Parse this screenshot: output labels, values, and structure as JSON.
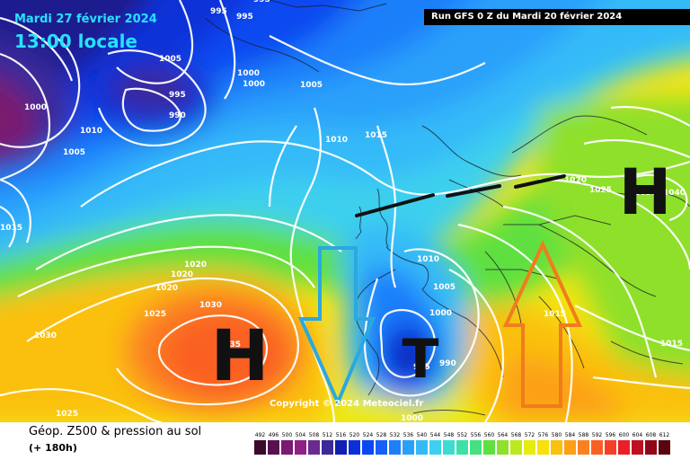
{
  "header": {
    "date": "Mardi 27 février 2024",
    "time": "13:00 locale",
    "run": "Run GFS 0 Z du Mardi 20 février 2024"
  },
  "map": {
    "pressure_labels": [
      "995",
      "995",
      "995",
      "1000",
      "1000",
      "1005",
      "995",
      "990",
      "1010",
      "1005",
      "1000",
      "1005",
      "1010",
      "1015",
      "1015",
      "1020",
      "1020",
      "1020",
      "1025",
      "1030",
      "1030",
      "1035",
      "1025",
      "1010",
      "1005",
      "1000",
      "995",
      "990",
      "1000",
      "1020",
      "1025",
      "1030",
      "1040",
      "1015",
      "1015"
    ],
    "pressure_systems": [
      {
        "label": "H",
        "color": "#111111"
      },
      {
        "label": "T",
        "color": "#111111"
      },
      {
        "label": "H",
        "color": "#111111"
      }
    ],
    "arrows": [
      {
        "direction": "down",
        "color": "#2aa8e0"
      },
      {
        "direction": "up",
        "color": "#f07c1c"
      }
    ],
    "copyright": "Copyright © 2024 Meteociel.fr"
  },
  "legend": {
    "title": "Géop. Z500 & pression au sol",
    "subtitle": "(+ 180h)",
    "scale": [
      {
        "value": "492",
        "color": "#3a0a2e"
      },
      {
        "value": "496",
        "color": "#5a1050"
      },
      {
        "value": "500",
        "color": "#7a1a70"
      },
      {
        "value": "504",
        "color": "#901f88"
      },
      {
        "value": "508",
        "color": "#6b2a90"
      },
      {
        "value": "512",
        "color": "#3a2a9a"
      },
      {
        "value": "516",
        "color": "#1020b0"
      },
      {
        "value": "520",
        "color": "#0a30d8"
      },
      {
        "value": "524",
        "color": "#0a48f0"
      },
      {
        "value": "528",
        "color": "#1660fa"
      },
      {
        "value": "532",
        "color": "#1e7ffa"
      },
      {
        "value": "536",
        "color": "#2aa0fa"
      },
      {
        "value": "540",
        "color": "#34baf8"
      },
      {
        "value": "544",
        "color": "#3ed0ee"
      },
      {
        "value": "548",
        "color": "#3cdcd0"
      },
      {
        "value": "552",
        "color": "#3ee0a8"
      },
      {
        "value": "556",
        "color": "#46e080"
      },
      {
        "value": "560",
        "color": "#5ee040"
      },
      {
        "value": "564",
        "color": "#8ee02a"
      },
      {
        "value": "568",
        "color": "#bce820"
      },
      {
        "value": "572",
        "color": "#e6ec10"
      },
      {
        "value": "576",
        "color": "#f8e00c"
      },
      {
        "value": "580",
        "color": "#fbc010"
      },
      {
        "value": "584",
        "color": "#fca018"
      },
      {
        "value": "588",
        "color": "#fc8020"
      },
      {
        "value": "592",
        "color": "#fa6024"
      },
      {
        "value": "596",
        "color": "#f44028"
      },
      {
        "value": "600",
        "color": "#e8202a"
      },
      {
        "value": "604",
        "color": "#c01020"
      },
      {
        "value": "608",
        "color": "#900818"
      },
      {
        "value": "612",
        "color": "#5a0410"
      }
    ]
  }
}
